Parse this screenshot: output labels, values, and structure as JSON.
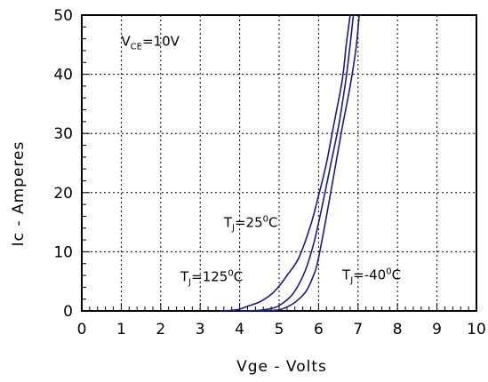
{
  "chart_data": {
    "type": "line",
    "title": "",
    "xlabel": "Vge - Volts",
    "ylabel": "Ic - Amperes",
    "xlim": [
      0,
      10
    ],
    "ylim": [
      0,
      50
    ],
    "x_ticks": [
      "0",
      "1",
      "2",
      "3",
      "4",
      "5",
      "6",
      "7",
      "8",
      "9",
      "10"
    ],
    "y_ticks": [
      "0",
      "10",
      "20",
      "30",
      "40",
      "50"
    ],
    "grid": true,
    "grid_style": "dotted",
    "line_color": "#1a1a8c",
    "series": [
      {
        "name": "TJ=125°C",
        "x": [
          3.5,
          3.8,
          4.0,
          4.2,
          4.5,
          4.8,
          5.0,
          5.2,
          5.5,
          5.8,
          6.0,
          6.2,
          6.4,
          6.6,
          6.7,
          6.8
        ],
        "y": [
          0,
          0.1,
          0.3,
          0.8,
          1.5,
          2.8,
          4.2,
          6,
          9,
          14.5,
          19.5,
          25,
          32,
          39,
          45,
          50
        ]
      },
      {
        "name": "TJ=25°C",
        "x": [
          4.0,
          4.5,
          4.8,
          5.0,
          5.3,
          5.5,
          5.7,
          5.9,
          6.1,
          6.3,
          6.5,
          6.6,
          6.7,
          6.8,
          6.88
        ],
        "y": [
          0,
          0.1,
          0.4,
          0.9,
          2.5,
          4.5,
          7.5,
          12,
          18,
          24.5,
          31,
          35,
          39.5,
          45,
          50
        ]
      },
      {
        "name": "TJ=-40°C",
        "x": [
          4.5,
          5.0,
          5.3,
          5.5,
          5.7,
          5.9,
          6.0,
          6.2,
          6.4,
          6.6,
          6.8,
          6.95,
          7.03
        ],
        "y": [
          0,
          0.2,
          1,
          2,
          3.5,
          6.5,
          9,
          16,
          23.5,
          31,
          38,
          44.5,
          50
        ]
      }
    ],
    "annotations": [
      {
        "main": "V",
        "sub": "CE",
        "tail": "=10V",
        "at": [
          1.0,
          44.8
        ]
      },
      {
        "main": "T",
        "sub": "J",
        "tail": "=25",
        "sup": "0",
        "end": "C",
        "at": [
          3.6,
          14.2
        ]
      },
      {
        "main": "T",
        "sub": "J",
        "tail": "=125",
        "sup": "0",
        "end": "C",
        "at": [
          2.5,
          5.0
        ]
      },
      {
        "main": "T",
        "sub": "J",
        "tail": "=-40",
        "sup": "0",
        "end": "C",
        "at": [
          6.6,
          5.3
        ]
      }
    ]
  }
}
